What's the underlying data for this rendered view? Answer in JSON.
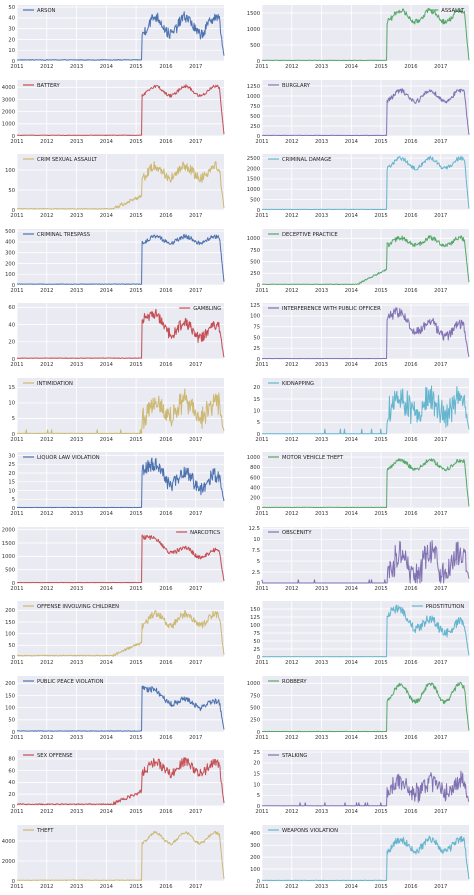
{
  "colors": {
    "blue": "#4c72b0",
    "green": "#55a868",
    "red": "#c44e52",
    "purple": "#8172b2",
    "yellow": "#ccb974",
    "cyan": "#64b5cd",
    "plot_background": "#eaeaf2"
  },
  "chart_data": [
    {
      "type": "line",
      "series": [
        {
          "name": "ARSON",
          "color": "blue",
          "profile": "flat_jump",
          "before": 1,
          "level": 33,
          "amp": 8,
          "noise": 5,
          "drop": 5
        }
      ],
      "ylim": [
        0,
        52
      ],
      "yticks": [
        0,
        10,
        20,
        30,
        40,
        50
      ],
      "legend": "top-left",
      "x_range": [
        2011.0,
        2017.95
      ],
      "xticks": [
        "2011",
        "2012",
        "2013",
        "2014",
        "2015",
        "2016",
        "2017"
      ],
      "grid": true
    },
    {
      "type": "line",
      "series": [
        {
          "name": "ASSAULT",
          "color": "green",
          "profile": "flat_jump",
          "before": 20,
          "level": 1400,
          "amp": 180,
          "noise": 80,
          "drop": 20
        }
      ],
      "ylim": [
        0,
        1750
      ],
      "yticks": [
        0,
        500,
        1000,
        1500
      ],
      "legend": "top-right",
      "x_range": [
        2011.0,
        2017.95
      ],
      "xticks": [
        "2011",
        "2012",
        "2013",
        "2014",
        "2015",
        "2016",
        "2017"
      ],
      "grid": true
    },
    {
      "type": "line",
      "series": [
        {
          "name": "BATTERY",
          "color": "red",
          "profile": "flat_jump",
          "before": 60,
          "level": 3700,
          "amp": 400,
          "noise": 130,
          "drop": 150
        }
      ],
      "ylim": [
        0,
        4600
      ],
      "yticks": [
        0,
        1000,
        2000,
        3000,
        4000
      ],
      "legend": "top-left",
      "x_range": [
        2011.0,
        2017.95
      ],
      "xticks": [
        "2011",
        "2012",
        "2013",
        "2014",
        "2015",
        "2016",
        "2017"
      ],
      "grid": true
    },
    {
      "type": "line",
      "series": [
        {
          "name": "BURGLARY",
          "color": "purple",
          "profile": "flat_jump",
          "before": 15,
          "level": 1000,
          "amp": 130,
          "noise": 60,
          "drop": 30
        }
      ],
      "ylim": [
        0,
        1400
      ],
      "yticks": [
        0,
        250,
        500,
        750,
        1000,
        1250
      ],
      "legend": "top-left",
      "x_range": [
        2011.0,
        2017.95
      ],
      "xticks": [
        "2011",
        "2012",
        "2013",
        "2014",
        "2015",
        "2016",
        "2017"
      ],
      "grid": true
    },
    {
      "type": "line",
      "series": [
        {
          "name": "CRIM SEXUAL ASSAULT",
          "color": "yellow",
          "profile": "slow_rise",
          "before": 3,
          "level": 95,
          "amp": 15,
          "noise": 12,
          "drop": 5
        }
      ],
      "ylim": [
        0,
        140
      ],
      "yticks": [
        0,
        50,
        100
      ],
      "legend": "top-left",
      "x_range": [
        2011.0,
        2017.95
      ],
      "xticks": [
        "2011",
        "2012",
        "2013",
        "2014",
        "2015",
        "2016",
        "2017"
      ],
      "grid": true
    },
    {
      "type": "line",
      "series": [
        {
          "name": "CRIMINAL DAMAGE",
          "color": "cyan",
          "profile": "flat_jump",
          "before": 30,
          "level": 2250,
          "amp": 250,
          "noise": 100,
          "drop": 60
        }
      ],
      "ylim": [
        0,
        2700
      ],
      "yticks": [
        0,
        500,
        1000,
        1500,
        2000,
        2500
      ],
      "legend": "top-left",
      "x_range": [
        2011.0,
        2017.95
      ],
      "xticks": [
        "2011",
        "2012",
        "2013",
        "2014",
        "2015",
        "2016",
        "2017"
      ],
      "grid": true
    },
    {
      "type": "line",
      "series": [
        {
          "name": "CRIMINAL TRESPASS",
          "color": "blue",
          "profile": "flat_jump",
          "before": 8,
          "level": 420,
          "amp": 30,
          "noise": 20,
          "drop": 30
        }
      ],
      "ylim": [
        0,
        520
      ],
      "yticks": [
        0,
        100,
        200,
        300,
        400,
        500
      ],
      "legend": "top-left",
      "x_range": [
        2011.0,
        2017.95
      ],
      "xticks": [
        "2011",
        "2012",
        "2013",
        "2014",
        "2015",
        "2016",
        "2017"
      ],
      "grid": true
    },
    {
      "type": "line",
      "series": [
        {
          "name": "DECEPTIVE PRACTICE",
          "color": "green",
          "profile": "slow_rise",
          "before": 15,
          "level": 930,
          "amp": 80,
          "noise": 50,
          "drop": 60
        }
      ],
      "ylim": [
        0,
        1200
      ],
      "yticks": [
        0,
        250,
        500,
        750,
        1000
      ],
      "legend": "top-left",
      "x_range": [
        2011.0,
        2017.95
      ],
      "xticks": [
        "2011",
        "2012",
        "2013",
        "2014",
        "2015",
        "2016",
        "2017"
      ],
      "grid": true
    },
    {
      "type": "line",
      "series": [
        {
          "name": "GAMBLING",
          "color": "red",
          "profile": "spike_decay",
          "before": 1,
          "level": 55,
          "amp": 8,
          "noise": 6,
          "drop": 2
        }
      ],
      "ylim": [
        0,
        65
      ],
      "yticks": [
        0,
        20,
        40,
        60
      ],
      "legend": "top-right",
      "x_range": [
        2011.0,
        2017.95
      ],
      "xticks": [
        "2011",
        "2012",
        "2013",
        "2014",
        "2015",
        "2016",
        "2017"
      ],
      "grid": true
    },
    {
      "type": "line",
      "series": [
        {
          "name": "INTERFERENCE WITH PUBLIC OFFICER",
          "color": "purple",
          "profile": "spike_decay",
          "before": 1,
          "level": 115,
          "amp": 15,
          "noise": 12,
          "drop": 5
        }
      ],
      "ylim": [
        0,
        130
      ],
      "yticks": [
        0,
        25,
        50,
        75,
        100,
        125
      ],
      "legend": "top-left",
      "x_range": [
        2011.0,
        2017.95
      ],
      "xticks": [
        "2011",
        "2012",
        "2013",
        "2014",
        "2015",
        "2016",
        "2017"
      ],
      "grid": true
    },
    {
      "type": "line",
      "series": [
        {
          "name": "INTIMIDATION",
          "color": "yellow",
          "profile": "noisy_late",
          "before": 0.2,
          "level": 9,
          "amp": 3,
          "noise": 3,
          "drop": 1
        }
      ],
      "ylim": [
        0,
        18
      ],
      "yticks": [
        0,
        5,
        10,
        15
      ],
      "legend": "top-left",
      "x_range": [
        2011.0,
        2017.95
      ],
      "xticks": [
        "2011",
        "2012",
        "2013",
        "2014",
        "2015",
        "2016",
        "2017"
      ],
      "grid": true
    },
    {
      "type": "line",
      "series": [
        {
          "name": "KIDNAPPING",
          "color": "cyan",
          "profile": "noisy_late",
          "before": 0.1,
          "level": 14,
          "amp": 4,
          "noise": 5,
          "drop": 2
        }
      ],
      "ylim": [
        0,
        24
      ],
      "yticks": [
        0,
        5,
        10,
        15,
        20
      ],
      "legend": "top-left",
      "x_range": [
        2011.0,
        2017.95
      ],
      "xticks": [
        "2011",
        "2012",
        "2013",
        "2014",
        "2015",
        "2016",
        "2017"
      ],
      "grid": true
    },
    {
      "type": "line",
      "series": [
        {
          "name": "LIQUOR LAW VIOLATION",
          "color": "blue",
          "profile": "spike_decay",
          "before": 0.3,
          "level": 26,
          "amp": 4,
          "noise": 4,
          "drop": 4
        }
      ],
      "ylim": [
        0,
        32
      ],
      "yticks": [
        0,
        5,
        10,
        15,
        20,
        25,
        30
      ],
      "legend": "top-left",
      "x_range": [
        2011.0,
        2017.95
      ],
      "xticks": [
        "2011",
        "2012",
        "2013",
        "2014",
        "2015",
        "2016",
        "2017"
      ],
      "grid": true
    },
    {
      "type": "line",
      "series": [
        {
          "name": "MOTOR VEHICLE THEFT",
          "color": "green",
          "profile": "flat_jump",
          "before": 12,
          "level": 850,
          "amp": 90,
          "noise": 40,
          "drop": 30
        }
      ],
      "ylim": [
        0,
        1100
      ],
      "yticks": [
        0,
        200,
        400,
        600,
        800,
        1000
      ],
      "legend": "top-left",
      "x_range": [
        2011.0,
        2017.95
      ],
      "xticks": [
        "2011",
        "2012",
        "2013",
        "2014",
        "2015",
        "2016",
        "2017"
      ],
      "grid": true
    },
    {
      "type": "line",
      "series": [
        {
          "name": "NARCOTICS",
          "color": "red",
          "profile": "spike_decay",
          "before": 15,
          "level": 1900,
          "amp": 150,
          "noise": 80,
          "drop": 80
        }
      ],
      "ylim": [
        0,
        2100
      ],
      "yticks": [
        0,
        500,
        1000,
        1500,
        2000
      ],
      "legend": "top-right",
      "x_range": [
        2011.0,
        2017.95
      ],
      "xticks": [
        "2011",
        "2012",
        "2013",
        "2014",
        "2015",
        "2016",
        "2017"
      ],
      "grid": true
    },
    {
      "type": "line",
      "series": [
        {
          "name": "OBSCENITY",
          "color": "purple",
          "profile": "noisy_late",
          "before": 0,
          "level": 5,
          "amp": 3,
          "noise": 3,
          "drop": 1
        }
      ],
      "ylim": [
        0,
        12.8
      ],
      "yticks": [
        0,
        2.5,
        5.0,
        7.5,
        10.0,
        12.5
      ],
      "legend": "top-left",
      "x_range": [
        2011.0,
        2017.95
      ],
      "xticks": [
        "2011",
        "2012",
        "2013",
        "2014",
        "2015",
        "2016",
        "2017"
      ],
      "grid": true
    },
    {
      "type": "line",
      "series": [
        {
          "name": "OFFENSE INVOLVING CHILDREN",
          "color": "yellow",
          "profile": "slow_rise",
          "before": 6,
          "level": 160,
          "amp": 25,
          "noise": 15,
          "drop": 10
        }
      ],
      "ylim": [
        0,
        240
      ],
      "yticks": [
        0,
        50,
        100,
        150,
        200
      ],
      "legend": "top-left",
      "x_range": [
        2011.0,
        2017.95
      ],
      "xticks": [
        "2011",
        "2012",
        "2013",
        "2014",
        "2015",
        "2016",
        "2017"
      ],
      "grid": true
    },
    {
      "type": "line",
      "series": [
        {
          "name": "PROSTITUTION",
          "color": "cyan",
          "profile": "spike_decay",
          "before": 1,
          "level": 160,
          "amp": 20,
          "noise": 14,
          "drop": 5
        }
      ],
      "ylim": [
        0,
        175
      ],
      "yticks": [
        0,
        25,
        50,
        75,
        100,
        125,
        150
      ],
      "legend": "top-right",
      "x_range": [
        2011.0,
        2017.95
      ],
      "xticks": [
        "2011",
        "2012",
        "2013",
        "2014",
        "2015",
        "2016",
        "2017"
      ],
      "grid": true
    },
    {
      "type": "line",
      "series": [
        {
          "name": "PUBLIC PEACE VIOLATION",
          "color": "blue",
          "profile": "spike_decay",
          "before": 4,
          "level": 195,
          "amp": 15,
          "noise": 12,
          "drop": 10
        }
      ],
      "ylim": [
        0,
        230
      ],
      "yticks": [
        0,
        50,
        100,
        150,
        200
      ],
      "legend": "top-left",
      "x_range": [
        2011.0,
        2017.95
      ],
      "xticks": [
        "2011",
        "2012",
        "2013",
        "2014",
        "2015",
        "2016",
        "2017"
      ],
      "grid": true
    },
    {
      "type": "line",
      "series": [
        {
          "name": "ROBBERY",
          "color": "green",
          "profile": "flat_jump",
          "before": 10,
          "level": 800,
          "amp": 180,
          "noise": 50,
          "drop": 30
        }
      ],
      "ylim": [
        0,
        1150
      ],
      "yticks": [
        0,
        250,
        500,
        750,
        1000
      ],
      "legend": "top-left",
      "x_range": [
        2011.0,
        2017.95
      ],
      "xticks": [
        "2011",
        "2012",
        "2013",
        "2014",
        "2015",
        "2016",
        "2017"
      ],
      "grid": true
    },
    {
      "type": "line",
      "series": [
        {
          "name": "SEX OFFENSE",
          "color": "red",
          "profile": "slow_rise",
          "before": 3,
          "level": 65,
          "amp": 10,
          "noise": 8,
          "drop": 5
        }
      ],
      "ylim": [
        0,
        95
      ],
      "yticks": [
        0,
        20,
        40,
        60,
        80
      ],
      "legend": "top-left",
      "x_range": [
        2011.0,
        2017.95
      ],
      "xticks": [
        "2011",
        "2012",
        "2013",
        "2014",
        "2015",
        "2016",
        "2017"
      ],
      "grid": true
    },
    {
      "type": "line",
      "series": [
        {
          "name": "STALKING",
          "color": "purple",
          "profile": "noisy_late",
          "before": 0.1,
          "level": 10,
          "amp": 3,
          "noise": 4,
          "drop": 2
        }
      ],
      "ylim": [
        0,
        26
      ],
      "yticks": [
        0,
        5,
        10,
        15,
        20,
        25
      ],
      "legend": "top-left",
      "x_range": [
        2011.0,
        2017.95
      ],
      "xticks": [
        "2011",
        "2012",
        "2013",
        "2014",
        "2015",
        "2016",
        "2017"
      ],
      "grid": true
    },
    {
      "type": "line",
      "series": [
        {
          "name": "THEFT",
          "color": "yellow",
          "profile": "flat_jump",
          "before": 80,
          "level": 4300,
          "amp": 550,
          "noise": 150,
          "drop": 200
        }
      ],
      "ylim": [
        0,
        5600
      ],
      "yticks": [
        0,
        2000,
        4000
      ],
      "legend": "top-left",
      "x_range": [
        2011.0,
        2017.95
      ],
      "xticks": [
        "2011",
        "2012",
        "2013",
        "2014",
        "2015",
        "2016",
        "2017"
      ],
      "grid": true
    },
    {
      "type": "line",
      "series": [
        {
          "name": "WEAPONS VIOLATION",
          "color": "cyan",
          "profile": "flat_jump",
          "before": 5,
          "level": 300,
          "amp": 50,
          "noise": 30,
          "drop": 15
        }
      ],
      "ylim": [
        0,
        470
      ],
      "yticks": [
        0,
        100,
        200,
        300,
        400
      ],
      "legend": "top-left",
      "x_range": [
        2011.0,
        2017.95
      ],
      "xticks": [
        "2011",
        "2012",
        "2013",
        "2014",
        "2015",
        "2016",
        "2017"
      ],
      "grid": true
    }
  ]
}
